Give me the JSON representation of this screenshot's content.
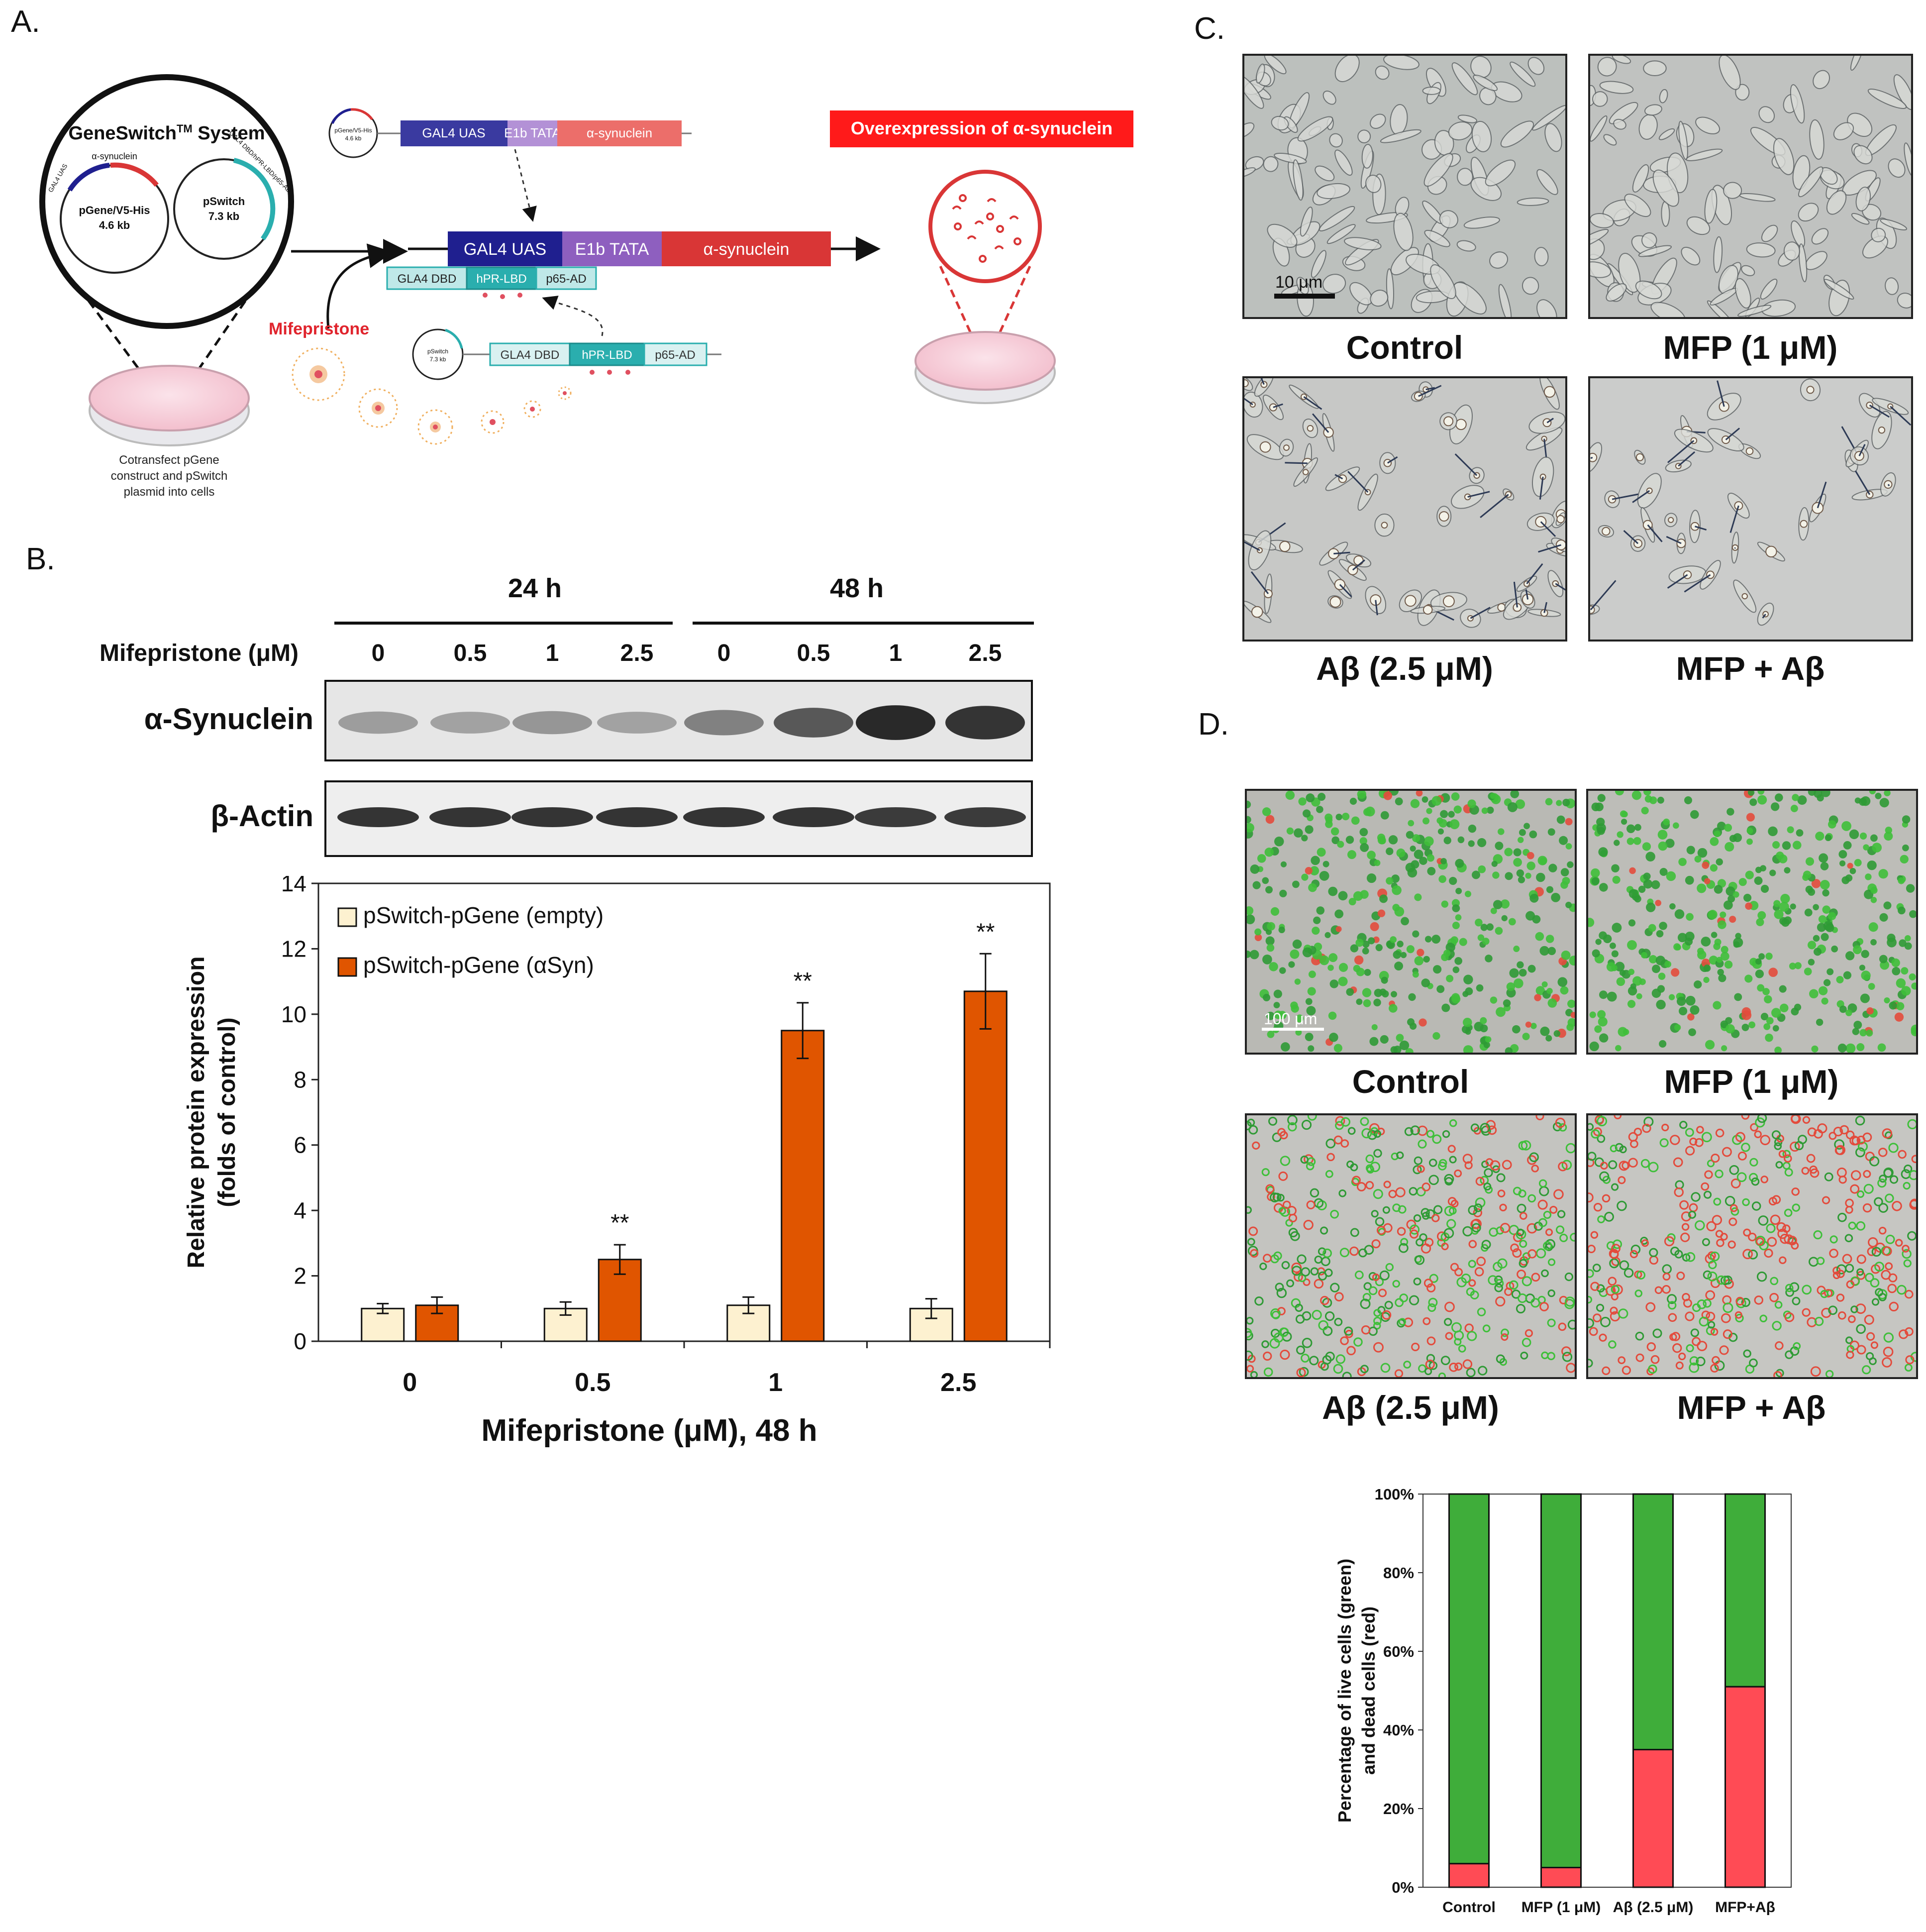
{
  "panels": {
    "a": {
      "letter": "A.",
      "system_title": "GeneSwitch",
      "system_title_sup": "TM",
      "system_title_suffix": " System",
      "plasmid1_name": "pGene/V5-His",
      "plasmid1_size": "4.6 kb",
      "plasmid1_arc_a": "GAL4 UAS",
      "plasmid1_arc_b": "α-synuclein",
      "plasmid2_name": "pSwitch",
      "plasmid2_size": "7.3 kb",
      "plasmid2_arc": "GAL4 DBD/hPR-LBD/p65-AD",
      "dish_caption": [
        "Cotransfect pGene",
        "construct and pSwitch",
        "plasmid into cells"
      ],
      "top_construct": {
        "plasmid": "pGene/V5-His",
        "size": "4.6 kb",
        "boxes": [
          "GAL4 UAS",
          "E1b TATA",
          "α-synuclein"
        ]
      },
      "main_construct": [
        "GAL4 UAS",
        "E1b TATA",
        "α-synuclein"
      ],
      "bound_factor": [
        "GLA4 DBD",
        "hPR-LBD",
        "p65-AD"
      ],
      "bottom_construct": {
        "plasmid": "pSwitch",
        "size": "7.3 kb",
        "boxes": [
          "GLA4 DBD",
          "hPR-LBD",
          "p65-AD"
        ]
      },
      "inducer": "Mifepristone",
      "overexpression": "Overexpression of α-synuclein",
      "colors": {
        "navy": "#1f1f8f",
        "purple": "#8e5fbf",
        "red": "#d93636",
        "teal": "#2aaeae",
        "pink": "#f3c6d3"
      }
    },
    "b": {
      "letter": "B.",
      "time_groups": [
        "24 h",
        "48 h"
      ],
      "dose_label": "Mifepristone (μM)",
      "doses": [
        "0",
        "0.5",
        "1",
        "2.5",
        "0",
        "0.5",
        "1",
        "2.5"
      ],
      "blot_rows": [
        "α-Synuclein",
        "β-Actin"
      ],
      "synuclein_intensity": [
        0.38,
        0.36,
        0.42,
        0.36,
        0.52,
        0.72,
        0.95,
        0.9
      ],
      "actin_intensity": [
        0.85,
        0.85,
        0.85,
        0.85,
        0.85,
        0.85,
        0.82,
        0.82
      ]
    },
    "c": {
      "letter": "C.",
      "labels": [
        "Control",
        "MFP (1 μM)",
        "Aβ (2.5 μM)",
        "MFP + Aβ"
      ],
      "scale_bar": "10 μm"
    },
    "d": {
      "letter": "D.",
      "labels": [
        "Control",
        "MFP (1 μM)",
        "Aβ (2.5 μM)",
        "MFP + Aβ"
      ],
      "scale_bar": "100 μm"
    }
  },
  "chart_data": [
    {
      "type": "bar",
      "categories": [
        "0",
        "0.5",
        "1",
        "2.5"
      ],
      "series": [
        {
          "name": "pSwitch-pGene (empty)",
          "color": "#fdf1d0",
          "values": [
            1.0,
            1.0,
            1.1,
            1.0
          ],
          "errors": [
            0.15,
            0.2,
            0.25,
            0.3
          ]
        },
        {
          "name": "pSwitch-pGene (αSyn)",
          "color": "#e05500",
          "values": [
            1.1,
            2.5,
            9.5,
            10.7
          ],
          "errors": [
            0.25,
            0.45,
            0.85,
            1.15
          ]
        }
      ],
      "significance": [
        "",
        "**",
        "**",
        "**"
      ],
      "xlabel": "Mifepristone (μM), 48 h",
      "ylabel": [
        "Relative protein expression",
        "(folds of control)"
      ],
      "yticks": [
        "0",
        "2",
        "4",
        "6",
        "8",
        "10",
        "12",
        "14"
      ],
      "ylim": [
        0,
        14
      ],
      "legend": "top-left"
    },
    {
      "type": "bar",
      "stacked": true,
      "categories": [
        "Control",
        "MFP (1 μM)",
        "Aβ (2.5 μM)",
        "MFP+Aβ"
      ],
      "series": [
        {
          "name": "dead",
          "color": "#ff4b55",
          "values": [
            6,
            5,
            35,
            51
          ]
        },
        {
          "name": "live",
          "color": "#3fad3a",
          "values": [
            94,
            95,
            65,
            49
          ]
        }
      ],
      "ylabel": [
        "Percentage of live cells (green)",
        "and dead cells (red)"
      ],
      "yticks": [
        "0%",
        "20%",
        "40%",
        "60%",
        "80%",
        "100%"
      ],
      "ylim": [
        0,
        100
      ]
    }
  ]
}
